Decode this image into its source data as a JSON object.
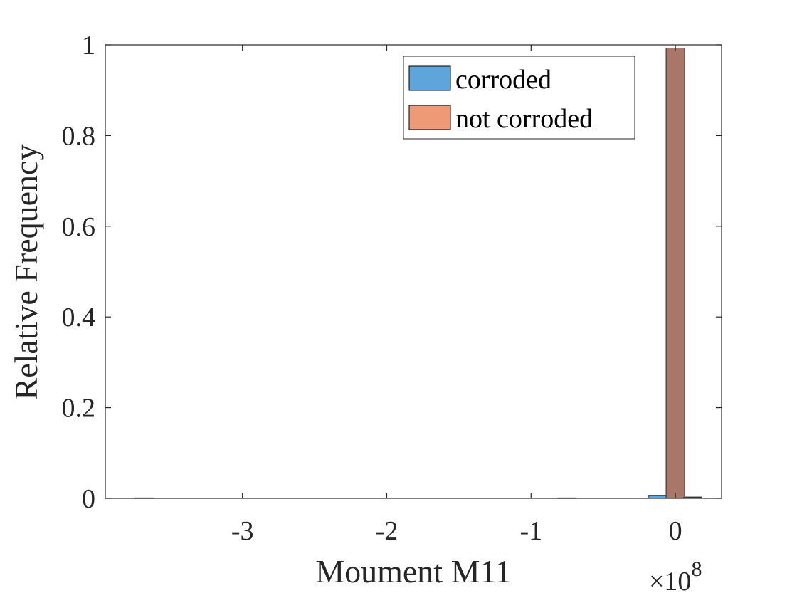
{
  "chart_data": {
    "type": "bar",
    "xlabel": "Moument M11",
    "ylabel": "Relative Frequency",
    "x_exponent_label": "×10",
    "x_exponent_power": "8",
    "xlim": [
      -3.95,
      0.32
    ],
    "ylim": [
      0,
      1
    ],
    "x_ticks": [
      -3,
      -2,
      -1,
      0
    ],
    "x_tick_labels": [
      "-3",
      "-2",
      "-1",
      "0"
    ],
    "y_ticks": [
      0,
      0.2,
      0.4,
      0.6,
      0.8,
      1
    ],
    "y_tick_labels": [
      "0",
      "0.2",
      "0.4",
      "0.6",
      "0.8",
      "1"
    ],
    "legend_position": "top-right",
    "grid": false,
    "bin_width": 0.128,
    "series": [
      {
        "name": "corroded",
        "color": "#5DA5DA",
        "bins": [
          {
            "x": -3.68,
            "value": 0.001
          },
          {
            "x": -0.75,
            "value": 0.001
          },
          {
            "x": -0.12,
            "value": 0.006
          },
          {
            "x": 0.0,
            "value": 0.99
          },
          {
            "x": 0.12,
            "value": 0.003
          }
        ]
      },
      {
        "name": "not corroded",
        "color": "#EE9A77",
        "bins": [
          {
            "x": 0.0,
            "value": 0.993
          },
          {
            "x": 0.12,
            "value": 0.002
          }
        ]
      }
    ],
    "overlap_color": "#A8776A"
  }
}
